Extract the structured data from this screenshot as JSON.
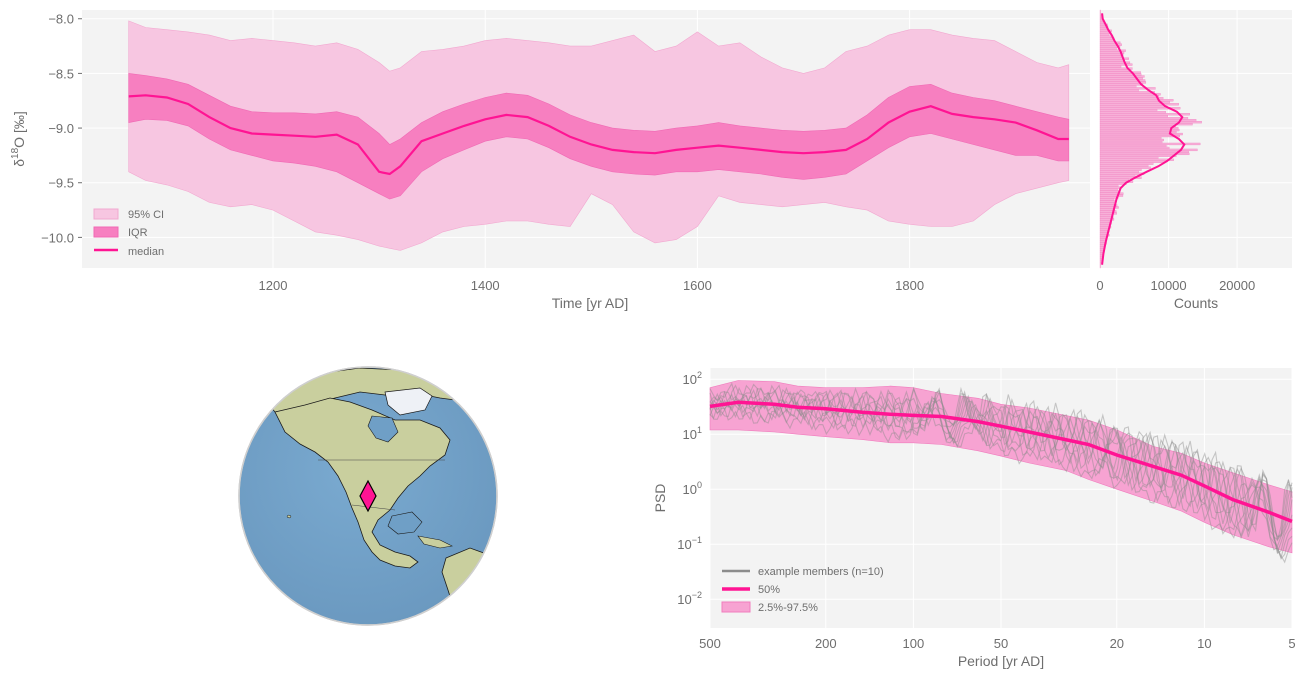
{
  "colors": {
    "accent": "#ff1493",
    "ci95": "#f7c6e1",
    "iqr": "#f77fc0",
    "members": "#8c8c8c",
    "axes_bg": "#f3f3f3",
    "ocean": "#6f9fc6",
    "land": "#c9cf9e"
  },
  "chart_data": [
    {
      "type": "area",
      "xlabel": "Time [yr AD]",
      "ylabel": "δ¹⁸O [‰]",
      "ylabel_parts": {
        "pre": "δ",
        "sup": "18",
        "post": "O [‰]"
      },
      "xlim": [
        1020,
        1970
      ],
      "ylim": [
        -10.28,
        -7.92
      ],
      "x_ticks": [
        1200,
        1400,
        1600,
        1800
      ],
      "y_ticks": [
        -8.0,
        -8.5,
        -9.0,
        -9.5,
        -10.0
      ],
      "y_tick_labels": [
        "−8.0",
        "−8.5",
        "−9.0",
        "−9.5",
        "−10.0"
      ],
      "grid": true,
      "legend": {
        "placement": "lower-left",
        "entries": [
          "95% CI",
          "IQR",
          "median"
        ]
      },
      "x": [
        1064,
        1080,
        1100,
        1120,
        1140,
        1160,
        1180,
        1200,
        1220,
        1240,
        1260,
        1280,
        1300,
        1310,
        1320,
        1340,
        1360,
        1380,
        1400,
        1420,
        1440,
        1460,
        1480,
        1500,
        1520,
        1540,
        1560,
        1580,
        1600,
        1620,
        1640,
        1660,
        1680,
        1700,
        1720,
        1740,
        1760,
        1780,
        1800,
        1820,
        1840,
        1860,
        1880,
        1900,
        1920,
        1940,
        1950
      ],
      "median": [
        -8.71,
        -8.7,
        -8.72,
        -8.78,
        -8.9,
        -9.0,
        -9.05,
        -9.06,
        -9.07,
        -9.08,
        -9.06,
        -9.15,
        -9.4,
        -9.42,
        -9.35,
        -9.12,
        -9.05,
        -8.98,
        -8.92,
        -8.88,
        -8.9,
        -8.98,
        -9.08,
        -9.15,
        -9.2,
        -9.22,
        -9.23,
        -9.2,
        -9.18,
        -9.16,
        -9.18,
        -9.2,
        -9.22,
        -9.23,
        -9.22,
        -9.2,
        -9.1,
        -8.95,
        -8.85,
        -8.8,
        -8.87,
        -8.9,
        -8.92,
        -8.95,
        -9.02,
        -9.1,
        -9.1
      ],
      "iqr_upper": [
        -8.5,
        -8.52,
        -8.55,
        -8.6,
        -8.7,
        -8.8,
        -8.85,
        -8.86,
        -8.86,
        -8.87,
        -8.85,
        -8.9,
        -9.05,
        -9.15,
        -9.1,
        -8.95,
        -8.85,
        -8.78,
        -8.72,
        -8.68,
        -8.7,
        -8.78,
        -8.88,
        -8.95,
        -9.0,
        -9.02,
        -9.03,
        -9.0,
        -8.98,
        -8.95,
        -8.98,
        -9.0,
        -9.02,
        -9.03,
        -9.02,
        -9.0,
        -8.88,
        -8.72,
        -8.62,
        -8.6,
        -8.68,
        -8.72,
        -8.75,
        -8.8,
        -8.85,
        -8.9,
        -8.92
      ],
      "iqr_lower": [
        -8.95,
        -8.92,
        -8.93,
        -8.98,
        -9.1,
        -9.2,
        -9.25,
        -9.3,
        -9.32,
        -9.35,
        -9.4,
        -9.5,
        -9.6,
        -9.65,
        -9.62,
        -9.4,
        -9.28,
        -9.2,
        -9.12,
        -9.08,
        -9.1,
        -9.18,
        -9.28,
        -9.35,
        -9.4,
        -9.42,
        -9.43,
        -9.4,
        -9.4,
        -9.38,
        -9.4,
        -9.42,
        -9.45,
        -9.47,
        -9.45,
        -9.42,
        -9.3,
        -9.18,
        -9.08,
        -9.05,
        -9.1,
        -9.15,
        -9.2,
        -9.25,
        -9.25,
        -9.3,
        -9.3
      ],
      "ci95_upper": [
        -8.02,
        -8.08,
        -8.1,
        -8.12,
        -8.15,
        -8.2,
        -8.18,
        -8.2,
        -8.22,
        -8.25,
        -8.22,
        -8.28,
        -8.4,
        -8.48,
        -8.45,
        -8.3,
        -8.28,
        -8.25,
        -8.2,
        -8.18,
        -8.2,
        -8.22,
        -8.25,
        -8.25,
        -8.2,
        -8.15,
        -8.3,
        -8.25,
        -8.12,
        -8.25,
        -8.22,
        -8.35,
        -8.45,
        -8.5,
        -8.45,
        -8.3,
        -8.25,
        -8.15,
        -8.1,
        -8.1,
        -8.15,
        -8.18,
        -8.2,
        -8.3,
        -8.4,
        -8.45,
        -8.42
      ],
      "ci95_lower": [
        -9.4,
        -9.48,
        -9.52,
        -9.58,
        -9.68,
        -9.72,
        -9.7,
        -9.75,
        -9.85,
        -9.95,
        -9.98,
        -10.02,
        -10.08,
        -10.1,
        -10.12,
        -10.05,
        -9.95,
        -9.9,
        -9.88,
        -9.85,
        -9.85,
        -9.88,
        -9.9,
        -9.6,
        -9.7,
        -9.95,
        -10.05,
        -10.02,
        -9.9,
        -9.62,
        -9.68,
        -9.7,
        -9.72,
        -9.7,
        -9.68,
        -9.72,
        -9.75,
        -9.85,
        -9.88,
        -9.9,
        -9.9,
        -9.85,
        -9.7,
        -9.6,
        -9.55,
        -9.5,
        -9.48
      ]
    },
    {
      "type": "bar",
      "orientation": "horizontal-histogram",
      "xlabel": "Counts",
      "xlim": [
        0,
        28000
      ],
      "x_ticks": [
        0,
        10000,
        20000
      ],
      "ylim": [
        -10.28,
        -7.92
      ],
      "kde_y": [
        -10.25,
        -10.15,
        -10.05,
        -9.95,
        -9.85,
        -9.75,
        -9.65,
        -9.55,
        -9.5,
        -9.45,
        -9.4,
        -9.35,
        -9.3,
        -9.25,
        -9.2,
        -9.15,
        -9.1,
        -9.05,
        -9.0,
        -8.95,
        -8.9,
        -8.85,
        -8.8,
        -8.75,
        -8.7,
        -8.65,
        -8.6,
        -8.55,
        -8.5,
        -8.45,
        -8.4,
        -8.35,
        -8.3,
        -8.25,
        -8.2,
        -8.15,
        -8.1,
        -8.05,
        -8.0,
        -7.95
      ],
      "kde_counts": [
        300,
        500,
        800,
        1200,
        1600,
        2000,
        2400,
        3000,
        3800,
        5200,
        6800,
        8500,
        9800,
        10800,
        11800,
        12300,
        11500,
        10200,
        10400,
        11500,
        12000,
        11200,
        9500,
        8600,
        8200,
        7000,
        6000,
        5400,
        4800,
        4000,
        3600,
        3300,
        3000,
        2600,
        2100,
        1700,
        1200,
        800,
        400,
        300
      ]
    },
    {
      "type": "map",
      "projection": "orthographic",
      "marker": "diamond",
      "marker_color": "#ff1493",
      "location": "western North America"
    },
    {
      "type": "line",
      "xlabel": "Period [yr AD]",
      "ylabel": "PSD",
      "xscale": "log",
      "yscale": "log",
      "x_reversed": true,
      "xlim": [
        500,
        5
      ],
      "ylim": [
        0.003,
        160
      ],
      "x_ticks": [
        500,
        200,
        100,
        50,
        20,
        10,
        5
      ],
      "y_ticks": [
        100,
        10,
        1,
        0.1,
        0.01
      ],
      "y_tick_labels": [
        {
          "base": "10",
          "exp": "2"
        },
        {
          "base": "10",
          "exp": "1"
        },
        {
          "base": "10",
          "exp": "0"
        },
        {
          "base": "10",
          "exp": "−1"
        },
        {
          "base": "10",
          "exp": "−2"
        }
      ],
      "grid": true,
      "legend": {
        "placement": "lower-left",
        "entries": [
          "example members (n=10)",
          "50%",
          "2.5%-97.5%"
        ]
      },
      "period": [
        500,
        400,
        300,
        250,
        200,
        150,
        120,
        100,
        80,
        60,
        50,
        40,
        30,
        25,
        20,
        15,
        12,
        10,
        8,
        6,
        5
      ],
      "median": [
        32,
        38,
        35,
        31,
        29,
        25,
        23,
        22,
        21,
        17,
        14,
        11,
        8,
        6.5,
        4.2,
        2.6,
        1.8,
        1.15,
        0.65,
        0.38,
        0.26
      ],
      "upper": [
        70,
        95,
        90,
        75,
        70,
        70,
        75,
        70,
        55,
        45,
        35,
        30,
        22,
        18,
        12,
        6,
        4.5,
        3,
        2,
        1.2,
        0.9
      ],
      "lower": [
        12,
        12,
        11,
        10,
        9,
        8,
        7,
        7,
        6.5,
        5,
        4,
        3,
        2.2,
        1.5,
        1,
        0.6,
        0.4,
        0.25,
        0.15,
        0.09,
        0.07
      ],
      "member_count": 10
    }
  ]
}
